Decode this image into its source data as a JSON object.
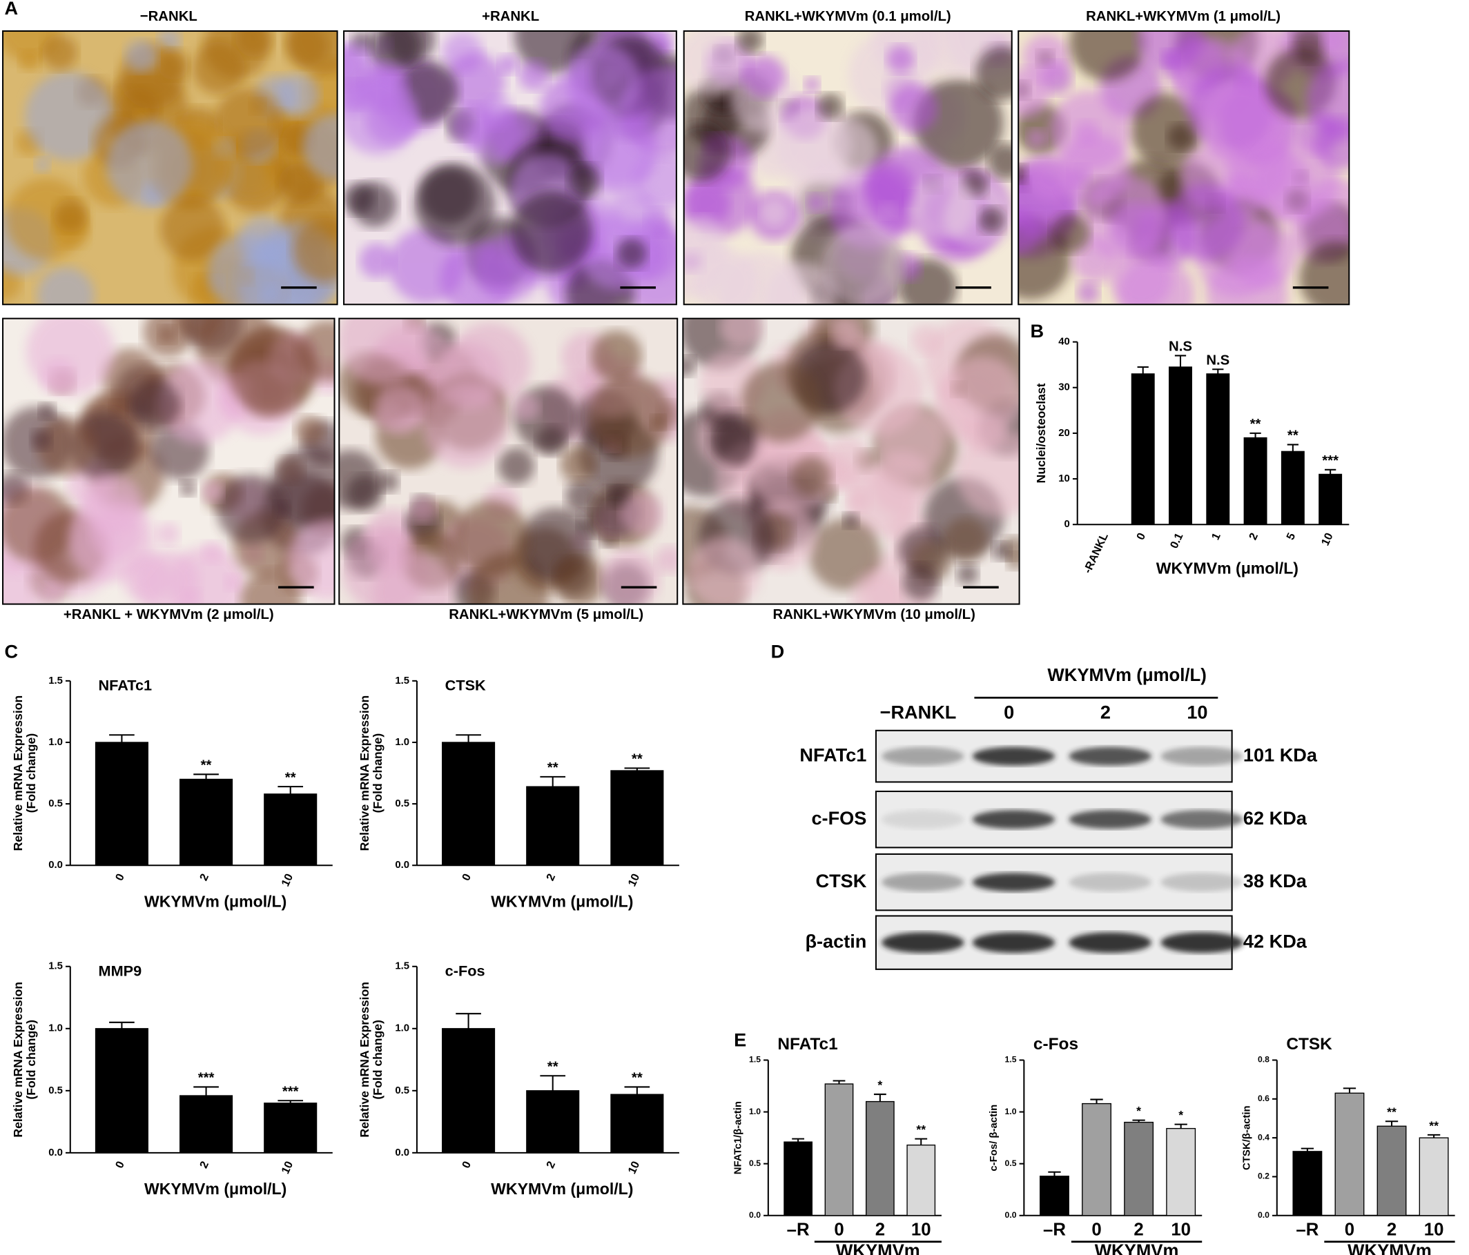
{
  "panel_labels": [
    "A",
    "B",
    "C",
    "D",
    "E"
  ],
  "images": {
    "titles": [
      "−RANKL",
      "+RANKL",
      "RANKL+WKYMVm  (0.1 μmol/L)",
      "RANKL+WKYMVm  (1 μmol/L)",
      "+RANKL + WKYMVm  (2 μmol/L)",
      "RANKL+WKYMVm  (5 μmol/L)",
      "RANKL+WKYMVm     (10 μmol/L)"
    ]
  },
  "blot": {
    "title": "WKYMVm (μmol/L)",
    "lanes": [
      "−RANKL",
      "0",
      "2",
      "10"
    ],
    "rows": [
      {
        "protein": "NFATc1",
        "size": "101 KDa"
      },
      {
        "protein": "c-FOS",
        "size": "62 KDa"
      },
      {
        "protein": "CTSK",
        "size": "38 KDa"
      },
      {
        "protein": "β-actin",
        "size": "42 KDa"
      }
    ]
  },
  "chart_data": [
    {
      "type": "bar",
      "ylabel": [
        "Nuclei/osteoclast"
      ],
      "xlabel": "WKYMVm (μmol/L)",
      "categories": [
        "-RANKL",
        "0",
        "0.1",
        "1",
        "2",
        "5",
        "10"
      ],
      "values": [
        null,
        33,
        34.5,
        33,
        19,
        16,
        11
      ],
      "errors": [
        null,
        1.5,
        2.5,
        1,
        1,
        1.5,
        1
      ],
      "annotations": [
        null,
        null,
        "N.S",
        "N.S",
        "**",
        "**",
        "***"
      ],
      "color": "#000000",
      "ylim": [
        0,
        40
      ],
      "yticks": [
        0,
        10,
        20,
        30,
        40
      ]
    },
    {
      "type": "bar",
      "title": "NFATc1",
      "ylabel": [
        "Relative mRNA Expression",
        "(Fold change)"
      ],
      "xlabel": "WKYMVm (μmol/L)",
      "categories": [
        "0",
        "2",
        "10"
      ],
      "values": [
        1.0,
        0.7,
        0.58
      ],
      "errors": [
        0.06,
        0.04,
        0.06
      ],
      "annotations": [
        null,
        "**",
        "**"
      ],
      "color": "#000000",
      "ylim": [
        0,
        1.5
      ],
      "yticks": [
        {
          "value": 0,
          "label": "0.0"
        },
        0.5,
        {
          "value": 1,
          "label": "1.0"
        },
        1.5
      ]
    },
    {
      "type": "bar",
      "title": "CTSK",
      "ylabel": [
        "Relative mRNA Expression",
        "(Fold change)"
      ],
      "xlabel": "WKYMVm (μmol/L)",
      "categories": [
        "0",
        "2",
        "10"
      ],
      "values": [
        1.0,
        0.64,
        0.77
      ],
      "errors": [
        0.06,
        0.08,
        0.02
      ],
      "annotations": [
        null,
        "**",
        "**"
      ],
      "color": "#000000",
      "ylim": [
        0,
        1.5
      ],
      "yticks": [
        {
          "value": 0,
          "label": "0.0"
        },
        0.5,
        {
          "value": 1,
          "label": "1.0"
        },
        1.5
      ]
    },
    {
      "type": "bar",
      "title": "MMP9",
      "ylabel": [
        "Relative mRNA Expression",
        "(Fold change)"
      ],
      "xlabel": "WKYMVm (μmol/L)",
      "categories": [
        "0",
        "2",
        "10"
      ],
      "values": [
        1.0,
        0.46,
        0.4
      ],
      "errors": [
        0.05,
        0.07,
        0.02
      ],
      "annotations": [
        null,
        "***",
        "***"
      ],
      "color": "#000000",
      "ylim": [
        0,
        1.5
      ],
      "yticks": [
        {
          "value": 0,
          "label": "0.0"
        },
        0.5,
        {
          "value": 1,
          "label": "1.0"
        },
        1.5
      ]
    },
    {
      "type": "bar",
      "title": "c-Fos",
      "ylabel": [
        "Relative mRNA Expression",
        "(Fold change)"
      ],
      "xlabel": "WKYMVm (μmol/L)",
      "categories": [
        "0",
        "2",
        "10"
      ],
      "values": [
        1.0,
        0.5,
        0.47
      ],
      "errors": [
        0.12,
        0.12,
        0.06
      ],
      "annotations": [
        null,
        "**",
        "**"
      ],
      "color": "#000000",
      "ylim": [
        0,
        1.5
      ],
      "yticks": [
        {
          "value": 0,
          "label": "0.0"
        },
        0.5,
        {
          "value": 1,
          "label": "1.0"
        },
        1.5
      ]
    },
    {
      "type": "bar",
      "title": "NFATc1",
      "ylabel": [
        "NFATc1/β-actin"
      ],
      "group_label": "WKYMVm",
      "categories": [
        "–R",
        "0",
        "2",
        "10"
      ],
      "values": [
        0.71,
        1.27,
        1.1,
        0.68
      ],
      "errors": [
        0.03,
        0.03,
        0.07,
        0.06
      ],
      "annotations": [
        null,
        null,
        "*",
        "**"
      ],
      "colors": [
        "#000000",
        "#a0a0a0",
        "#7f7f7f",
        "#d9d9d9"
      ],
      "ylim": [
        0,
        1.5
      ],
      "yticks": [
        {
          "value": 0,
          "label": "0.0"
        },
        0.5,
        {
          "value": 1,
          "label": "1.0"
        },
        1.5
      ]
    },
    {
      "type": "bar",
      "title": "c-Fos",
      "ylabel": [
        "c-Fos/ β-actin"
      ],
      "group_label": "WKYMVm",
      "categories": [
        "–R",
        "0",
        "2",
        "10"
      ],
      "values": [
        0.38,
        1.08,
        0.9,
        0.84
      ],
      "errors": [
        0.04,
        0.04,
        0.02,
        0.04
      ],
      "annotations": [
        null,
        null,
        "*",
        "*"
      ],
      "colors": [
        "#000000",
        "#a0a0a0",
        "#7f7f7f",
        "#d9d9d9"
      ],
      "ylim": [
        0,
        1.5
      ],
      "yticks": [
        {
          "value": 0,
          "label": "0.0"
        },
        0.5,
        {
          "value": 1,
          "label": "1.0"
        },
        1.5
      ]
    },
    {
      "type": "bar",
      "title": "CTSK",
      "ylabel": [
        "CTSK/β-actin"
      ],
      "group_label": "WKYMVm",
      "categories": [
        "–R",
        "0",
        "2",
        "10"
      ],
      "values": [
        0.33,
        0.63,
        0.46,
        0.4
      ],
      "errors": [
        0.015,
        0.025,
        0.025,
        0.015
      ],
      "annotations": [
        null,
        null,
        "**",
        "**"
      ],
      "colors": [
        "#000000",
        "#a0a0a0",
        "#7f7f7f",
        "#d9d9d9"
      ],
      "ylim": [
        0,
        0.8
      ],
      "yticks": [
        {
          "value": 0,
          "label": "0.0"
        },
        0.2,
        0.4,
        0.6,
        0.8
      ]
    }
  ]
}
